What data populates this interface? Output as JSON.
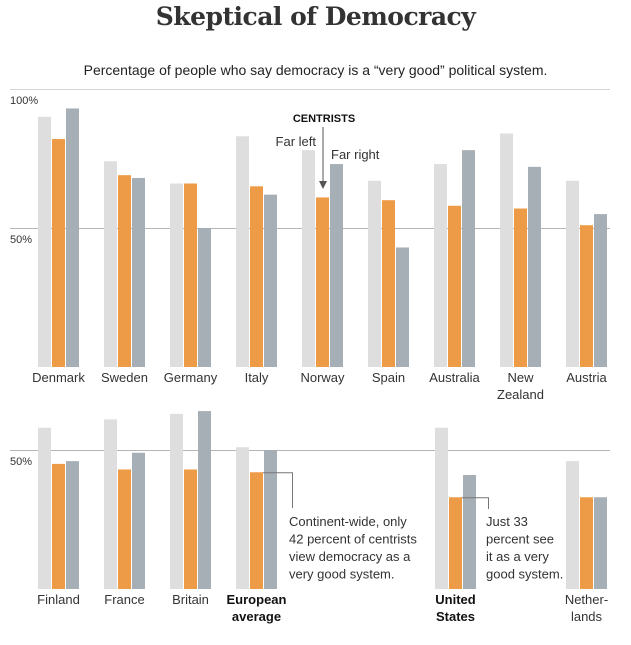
{
  "title": "Skeptical of Democracy",
  "subtitle": "Percentage of people who say democracy is a “very good” political system.",
  "colors": {
    "far_left": "#dedede",
    "centrists": "#ee9b47",
    "far_right": "#a6afb5",
    "gridline": "#bbbbbb"
  },
  "chart_data": {
    "type": "bar",
    "title": "Skeptical of Democracy",
    "subtitle": "Percentage of people who say democracy is a “very good” political system.",
    "xlabel": "",
    "ylabel": "",
    "ylim": [
      0,
      100
    ],
    "grid": true,
    "series_names": [
      "Far left",
      "Centrists",
      "Far right"
    ],
    "legend": {
      "header": "CENTRISTS",
      "far_left": "Far left",
      "far_right": "Far right",
      "placement": "annotated on Norway bars"
    },
    "panels": [
      {
        "name": "top",
        "yticks": [
          {
            "value": 100,
            "label": "100%"
          },
          {
            "value": 50,
            "label": "50%"
          }
        ],
        "categories": [
          {
            "label": [
              "Denmark"
            ],
            "bold": false,
            "values": [
              90,
              82,
              93
            ]
          },
          {
            "label": [
              "Sweden"
            ],
            "bold": false,
            "values": [
              74,
              69,
              68
            ]
          },
          {
            "label": [
              "Germany"
            ],
            "bold": false,
            "values": [
              66,
              66,
              50
            ]
          },
          {
            "label": [
              "Italy"
            ],
            "bold": false,
            "values": [
              83,
              65,
              62
            ]
          },
          {
            "label": [
              "Norway"
            ],
            "bold": false,
            "values": [
              78,
              61,
              73
            ]
          },
          {
            "label": [
              "Spain"
            ],
            "bold": false,
            "values": [
              67,
              60,
              43
            ]
          },
          {
            "label": [
              "Australia"
            ],
            "bold": false,
            "values": [
              73,
              58,
              78
            ]
          },
          {
            "label": [
              "New",
              "Zealand"
            ],
            "bold": false,
            "values": [
              84,
              57,
              72
            ]
          },
          {
            "label": [
              "Austria"
            ],
            "bold": false,
            "values": [
              67,
              51,
              55
            ]
          }
        ]
      },
      {
        "name": "bottom",
        "yticks": [
          {
            "value": 50,
            "label": "50%"
          }
        ],
        "categories": [
          {
            "label": [
              "Finland"
            ],
            "bold": false,
            "values": [
              58,
              45,
              46
            ]
          },
          {
            "label": [
              "France"
            ],
            "bold": false,
            "values": [
              61,
              43,
              49
            ]
          },
          {
            "label": [
              "Britain"
            ],
            "bold": false,
            "values": [
              63,
              43,
              64
            ]
          },
          {
            "label": [
              "European",
              "average"
            ],
            "bold": true,
            "values": [
              51,
              42,
              50
            ]
          },
          {
            "label": [
              "United",
              "States"
            ],
            "bold": true,
            "values": [
              58,
              33,
              41
            ]
          },
          {
            "label": [
              "Nether-",
              "lands"
            ],
            "bold": false,
            "values": [
              46,
              33,
              33
            ]
          }
        ]
      }
    ],
    "annotations": [
      {
        "target": "European average",
        "text": [
          "Continent-wide, only",
          "42 percent of centrists",
          "view democracy as a",
          "very good system."
        ]
      },
      {
        "target": "United States",
        "text": [
          "Just 33",
          "percent see",
          "it as a very",
          "good system."
        ]
      }
    ]
  }
}
